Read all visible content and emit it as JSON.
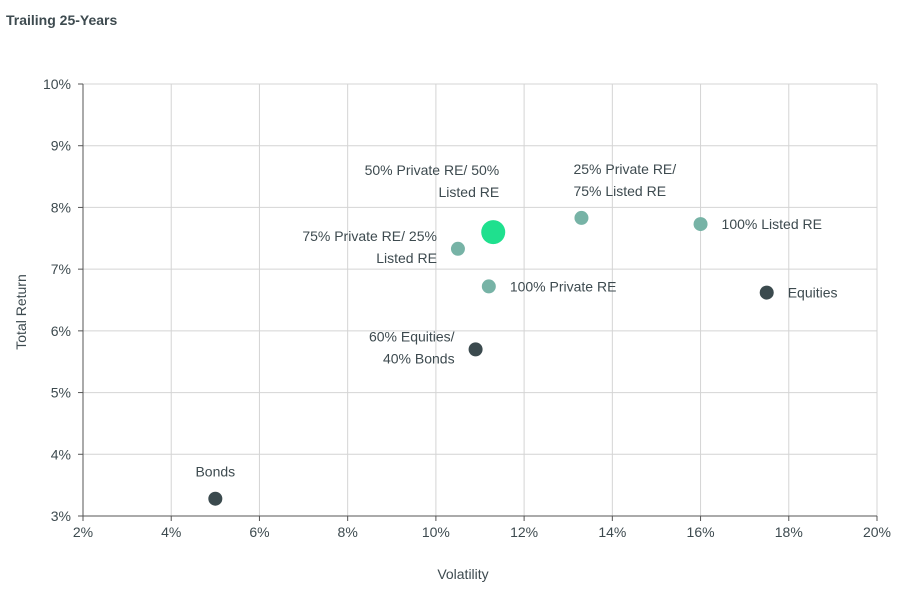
{
  "chart_data": {
    "type": "scatter",
    "title": "Trailing 25-Years",
    "xlabel": "Volatility",
    "ylabel": "Total Return",
    "xlim": [
      2,
      20
    ],
    "ylim": [
      3,
      10
    ],
    "x_ticks": [
      2,
      4,
      6,
      8,
      10,
      12,
      14,
      16,
      18,
      20
    ],
    "y_ticks": [
      3,
      4,
      5,
      6,
      7,
      8,
      9,
      10
    ],
    "tick_suffix": "%",
    "grid": true,
    "points": [
      {
        "name": "Bonds",
        "label_lines": [
          "Bonds"
        ],
        "x": 5.0,
        "y": 3.28,
        "color": "#3b4a4e",
        "size": "normal",
        "label_pos": "above"
      },
      {
        "name": "60% Equities/ 40% Bonds",
        "label_lines": [
          "60% Equities/",
          "40% Bonds"
        ],
        "x": 10.9,
        "y": 5.7,
        "color": "#3b4a4e",
        "size": "normal",
        "label_pos": "left"
      },
      {
        "name": "Equities",
        "label_lines": [
          "Equities"
        ],
        "x": 17.5,
        "y": 6.62,
        "color": "#3b4a4e",
        "size": "normal",
        "label_pos": "right"
      },
      {
        "name": "100% Private RE",
        "label_lines": [
          "100% Private RE"
        ],
        "x": 11.2,
        "y": 6.72,
        "color": "#77b3a6",
        "size": "normal",
        "label_pos": "right"
      },
      {
        "name": "75% Private RE/ 25% Listed RE",
        "label_lines": [
          "75% Private RE/  25%",
          "Listed RE"
        ],
        "x": 10.5,
        "y": 7.33,
        "color": "#77b3a6",
        "size": "normal",
        "label_pos": "left"
      },
      {
        "name": "50% Private RE/ 50% Listed RE",
        "label_lines": [
          "50% Private RE/ 50%",
          "Listed RE"
        ],
        "x": 11.3,
        "y": 7.6,
        "color": "#1fe08e",
        "size": "large",
        "label_pos": "upper-left"
      },
      {
        "name": "25% Private RE/ 75% Listed RE",
        "label_lines": [
          "25% Private RE/",
          "75% Listed RE"
        ],
        "x": 13.3,
        "y": 7.83,
        "color": "#77b3a6",
        "size": "normal",
        "label_pos": "above"
      },
      {
        "name": "100% Listed RE",
        "label_lines": [
          "100% Listed RE"
        ],
        "x": 16.0,
        "y": 7.73,
        "color": "#77b3a6",
        "size": "normal",
        "label_pos": "right"
      }
    ]
  }
}
